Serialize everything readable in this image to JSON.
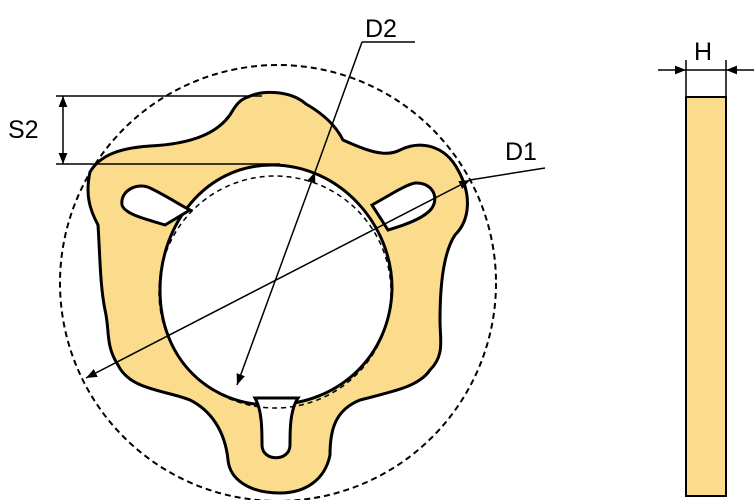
{
  "labels": {
    "d1": "D1",
    "d2": "D2",
    "s2": "S2",
    "h": "H"
  },
  "colors": {
    "part_fill": "#FBDC8C",
    "outline": "#000000",
    "background": "#FFFFFF"
  }
}
